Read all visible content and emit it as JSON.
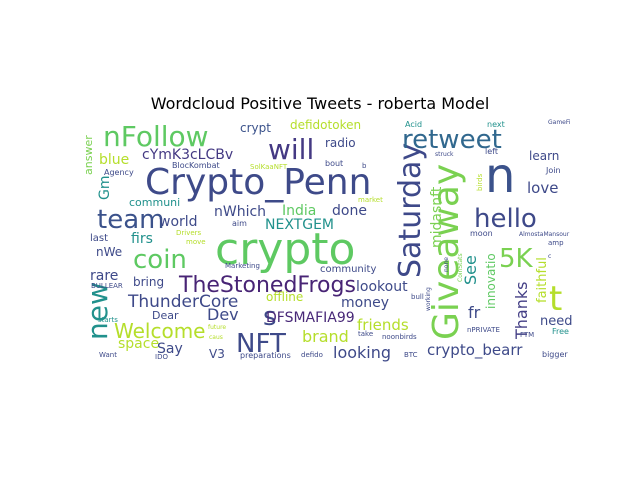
{
  "figure": {
    "title": "Wordcloud Positive Tweets - roberta Model"
  },
  "words": [
    {
      "text": "crypto",
      "color": "#5ec962"
    },
    {
      "text": "Crypto_Penn",
      "color": "#3e4a89"
    },
    {
      "text": "n",
      "color": "#3b528b"
    },
    {
      "text": "Giveaway",
      "color": "#7ad151"
    },
    {
      "text": "Saturday",
      "color": "#3e4989"
    },
    {
      "text": "nFollow",
      "color": "#5ec962"
    },
    {
      "text": "retweet",
      "color": "#31688e"
    },
    {
      "text": "will",
      "color": "#443983"
    },
    {
      "text": "team",
      "color": "#3b528b"
    },
    {
      "text": "hello",
      "color": "#3e4989"
    },
    {
      "text": "coin",
      "color": "#5ec962"
    },
    {
      "text": "NFT",
      "color": "#3e4a89"
    },
    {
      "text": "new",
      "color": "#21918c"
    },
    {
      "text": "t",
      "color": "#b5de2b"
    },
    {
      "text": "5K",
      "color": "#7ad151"
    },
    {
      "text": "TheStonedFrogs",
      "color": "#482475"
    },
    {
      "text": "s",
      "color": "#3e4a89"
    },
    {
      "text": "Welcome",
      "color": "#b5de2b"
    },
    {
      "text": "ThunderCore",
      "color": "#3e4989"
    },
    {
      "text": "Thanks",
      "color": "#433e85"
    },
    {
      "text": "Dev",
      "color": "#3e4a89"
    },
    {
      "text": "DFSMAFIA99",
      "color": "#482878"
    },
    {
      "text": "brand",
      "color": "#b5de2b"
    },
    {
      "text": "looking",
      "color": "#3e4989"
    },
    {
      "text": "crypto_bearr",
      "color": "#3e4a89"
    },
    {
      "text": "friends",
      "color": "#b5de2b"
    },
    {
      "text": "money",
      "color": "#3e4a89"
    },
    {
      "text": "lookout",
      "color": "#3e4a89"
    },
    {
      "text": "fr",
      "color": "#3e4a89"
    },
    {
      "text": "See",
      "color": "#21918c"
    },
    {
      "text": "love",
      "color": "#3e4989"
    },
    {
      "text": "learn",
      "color": "#3e4989"
    },
    {
      "text": "need",
      "color": "#3e4a89"
    },
    {
      "text": "faithful",
      "color": "#b5de2b"
    },
    {
      "text": "innovatio",
      "color": "#5ec962"
    },
    {
      "text": "midasnft",
      "color": "#7ad151"
    },
    {
      "text": "blue",
      "color": "#b5de2b"
    },
    {
      "text": "cYmK3cLCBv",
      "color": "#443983"
    },
    {
      "text": "crypt",
      "color": "#3b528b"
    },
    {
      "text": "defidotoken",
      "color": "#b5de2b"
    },
    {
      "text": "radio",
      "color": "#3e4a89"
    },
    {
      "text": "NEXTGEM",
      "color": "#21918c"
    },
    {
      "text": "India",
      "color": "#5ec962"
    },
    {
      "text": "done",
      "color": "#3e4989"
    },
    {
      "text": "nWhich",
      "color": "#3e4a89"
    },
    {
      "text": "world",
      "color": "#3e4a89"
    },
    {
      "text": "firs",
      "color": "#21918c"
    },
    {
      "text": "communi",
      "color": "#21918c"
    },
    {
      "text": "Gm",
      "color": "#21918c"
    },
    {
      "text": "rare",
      "color": "#3e4989"
    },
    {
      "text": "bring",
      "color": "#3e4989"
    },
    {
      "text": "nWe",
      "color": "#3e4a89"
    },
    {
      "text": "last",
      "color": "#3e4a89"
    },
    {
      "text": "space",
      "color": "#b5de2b"
    },
    {
      "text": "Say",
      "color": "#3e4a89"
    },
    {
      "text": "Dear",
      "color": "#3e4a89"
    },
    {
      "text": "V3",
      "color": "#3e4a89"
    },
    {
      "text": "offline",
      "color": "#b5de2b"
    },
    {
      "text": "community",
      "color": "#3e4a89"
    },
    {
      "text": "answer",
      "color": "#7ad151"
    },
    {
      "text": "Agency",
      "color": "#3e4a89"
    },
    {
      "text": "BlocKombat",
      "color": "#3e4a89"
    },
    {
      "text": "SolKaaNFT",
      "color": "#b5de2b"
    },
    {
      "text": "bout",
      "color": "#3e4a89"
    },
    {
      "text": "b",
      "color": "#3e4a89"
    },
    {
      "text": "market",
      "color": "#b5de2b"
    },
    {
      "text": "Acid",
      "color": "#21918c"
    },
    {
      "text": "next",
      "color": "#21918c"
    },
    {
      "text": "GameFi",
      "color": "#3e4a89"
    },
    {
      "text": "left",
      "color": "#3e4a89"
    },
    {
      "text": "struck",
      "color": "#3e4a89"
    },
    {
      "text": "Join",
      "color": "#3e4a89"
    },
    {
      "text": "birds",
      "color": "#b5de2b"
    },
    {
      "text": "moon",
      "color": "#3e4a89"
    },
    {
      "text": "AlmostaMansour",
      "color": "#3e4a89"
    },
    {
      "text": "amp",
      "color": "#3e4a89"
    },
    {
      "text": "c",
      "color": "#3e4a89"
    },
    {
      "text": "aim",
      "color": "#3e4a89"
    },
    {
      "text": "Drivers",
      "color": "#b5de2b"
    },
    {
      "text": "move",
      "color": "#b5de2b"
    },
    {
      "text": "Marketing",
      "color": "#3e4a89"
    },
    {
      "text": "bull",
      "color": "#3e4a89"
    },
    {
      "text": "working",
      "color": "#3e4a89"
    },
    {
      "text": "nPRIVATE",
      "color": "#3e4a89"
    },
    {
      "text": "FTM",
      "color": "#3e4a89"
    },
    {
      "text": "Free",
      "color": "#21918c"
    },
    {
      "text": "bigger",
      "color": "#3e4a89"
    },
    {
      "text": "take",
      "color": "#3e4a89"
    },
    {
      "text": "noonbirds",
      "color": "#3e4a89"
    },
    {
      "text": "BTC",
      "color": "#3e4a89"
    },
    {
      "text": "defido",
      "color": "#3e4a89"
    },
    {
      "text": "preparations",
      "color": "#3e4a89"
    },
    {
      "text": "IDO",
      "color": "#3e4a89"
    },
    {
      "text": "Want",
      "color": "#3e4a89"
    },
    {
      "text": "starts",
      "color": "#21918c"
    },
    {
      "text": "BULLEAR",
      "color": "#3e4a89"
    },
    {
      "text": "future",
      "color": "#b5de2b"
    },
    {
      "text": "caus",
      "color": "#b5de2b"
    },
    {
      "text": "none",
      "color": "#3e4a89"
    },
    {
      "text": "CoinStats",
      "color": "#7ad151"
    }
  ]
}
